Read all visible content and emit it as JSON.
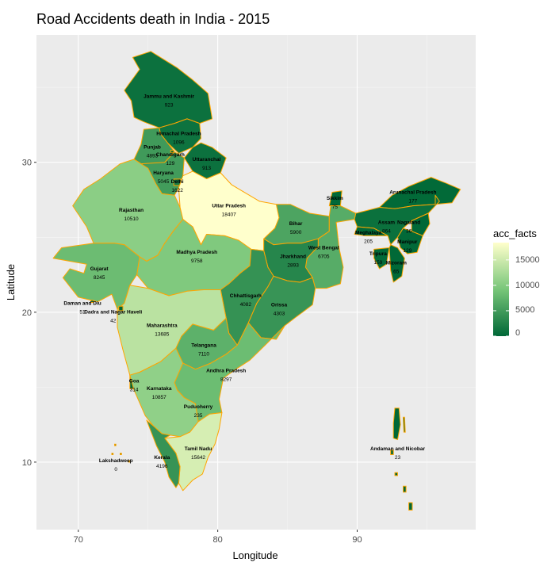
{
  "title": "Road Accidents death in India - 2015",
  "x_axis_title": "Longitude",
  "y_axis_title": "Latitude",
  "legend": {
    "title": "acc_facts",
    "ticks": [
      "15000",
      "10000",
      "5000",
      "0"
    ],
    "colors": {
      "low": "#006837",
      "mid": "#78c679",
      "high": "#ffffcc"
    },
    "range": [
      0,
      18407
    ]
  },
  "chart_data": {
    "type": "choropleth",
    "title": "Road Accidents death in India - 2015",
    "xlabel": "Longitude",
    "ylabel": "Latitude",
    "xlim": [
      67,
      98.5
    ],
    "ylim": [
      5.5,
      38.5
    ],
    "x_ticks": [
      70,
      80,
      90
    ],
    "y_ticks": [
      10,
      20,
      30
    ],
    "x_tick_labels": [
      "70",
      "80",
      "90"
    ],
    "y_tick_labels": [
      "10",
      "20",
      "30"
    ],
    "grid": true,
    "background": "#ebebeb",
    "state_border_color": "#ffa500",
    "legend_position": "right",
    "regions": [
      {
        "name": "Jammu and Kashmir",
        "value": 923,
        "lon": 76.5,
        "lat": 34.3
      },
      {
        "name": "Himachal Pradesh",
        "value": 1096,
        "lon": 77.2,
        "lat": 31.8
      },
      {
        "name": "Punjab",
        "value": 4893,
        "lon": 75.3,
        "lat": 30.9
      },
      {
        "name": "Chandigarh",
        "value": 129,
        "lon": 76.6,
        "lat": 30.4
      },
      {
        "name": "Uttaranchal",
        "value": 913,
        "lon": 79.2,
        "lat": 30.1
      },
      {
        "name": "Haryana",
        "value": 5045,
        "lon": 76.1,
        "lat": 29.2
      },
      {
        "name": "Delhi",
        "value": 1622,
        "lon": 77.1,
        "lat": 28.6
      },
      {
        "name": "Rajasthan",
        "value": 10510,
        "lon": 73.8,
        "lat": 26.7
      },
      {
        "name": "Uttar Pradesh",
        "value": 18407,
        "lon": 80.8,
        "lat": 27.0
      },
      {
        "name": "Sikkim",
        "value": 75,
        "lon": 88.4,
        "lat": 27.5
      },
      {
        "name": "Arunachal Pradesh",
        "value": 177,
        "lon": 94.0,
        "lat": 27.9
      },
      {
        "name": "Bihar",
        "value": 5900,
        "lon": 85.6,
        "lat": 25.8
      },
      {
        "name": "Assam",
        "value": 864,
        "lon": 92.1,
        "lat": 25.9
      },
      {
        "name": "Nagaland",
        "value": 36,
        "lon": 93.7,
        "lat": 25.9
      },
      {
        "name": "Meghalaya",
        "value": 205,
        "lon": 90.8,
        "lat": 25.2
      },
      {
        "name": "Manipur",
        "value": 129,
        "lon": 93.6,
        "lat": 24.6
      },
      {
        "name": "West Bengal",
        "value": 6705,
        "lon": 87.6,
        "lat": 24.2
      },
      {
        "name": "Tripura",
        "value": 159,
        "lon": 91.5,
        "lat": 23.8
      },
      {
        "name": "Mizoram",
        "value": 65,
        "lon": 92.8,
        "lat": 23.2
      },
      {
        "name": "Madhya Pradesh",
        "value": 9758,
        "lon": 78.5,
        "lat": 23.9
      },
      {
        "name": "Jharkhand",
        "value": 2893,
        "lon": 85.4,
        "lat": 23.6
      },
      {
        "name": "Gujarat",
        "value": 8245,
        "lon": 71.5,
        "lat": 22.8
      },
      {
        "name": "Chhattisgarh",
        "value": 4082,
        "lon": 82.0,
        "lat": 21.0
      },
      {
        "name": "Orissa",
        "value": 4303,
        "lon": 84.4,
        "lat": 20.4
      },
      {
        "name": "Daman and Diu",
        "value": 51,
        "lon": 70.3,
        "lat": 20.5
      },
      {
        "name": "Dadra and Nagar Haveli",
        "value": 42,
        "lon": 72.5,
        "lat": 19.9
      },
      {
        "name": "Maharashtra",
        "value": 13685,
        "lon": 76.0,
        "lat": 19.0
      },
      {
        "name": "Telangana",
        "value": 7110,
        "lon": 79.0,
        "lat": 17.7
      },
      {
        "name": "Andhra Pradesh",
        "value": 8297,
        "lon": 80.6,
        "lat": 16.0
      },
      {
        "name": "Goa",
        "value": 314,
        "lon": 74.0,
        "lat": 15.3
      },
      {
        "name": "Karnataka",
        "value": 10857,
        "lon": 75.8,
        "lat": 14.8
      },
      {
        "name": "Puduoherry",
        "value": 235,
        "lon": 78.6,
        "lat": 13.6
      },
      {
        "name": "Tamil Nadu",
        "value": 15642,
        "lon": 78.6,
        "lat": 10.8
      },
      {
        "name": "Kerala",
        "value": 4196,
        "lon": 76.0,
        "lat": 10.2
      },
      {
        "name": "Lakshadweep",
        "value": 0,
        "lon": 72.7,
        "lat": 10.0
      },
      {
        "name": "Andaman and Nicobar",
        "value": 23,
        "lon": 92.9,
        "lat": 10.8
      }
    ]
  }
}
